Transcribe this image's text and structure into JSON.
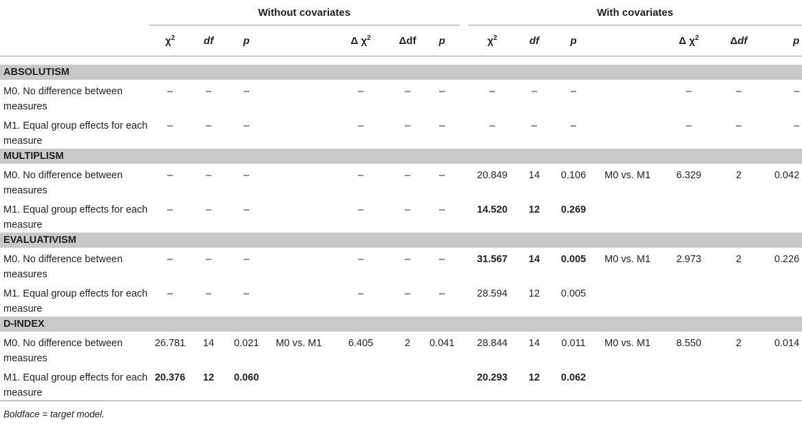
{
  "header": {
    "group_without": "Without covariates",
    "group_with": "With covariates",
    "cols": {
      "chi2": "χ",
      "chi2_sup": "2",
      "df": "df",
      "p": "p",
      "dchi2_prefix": "Δ",
      "dchi2_chi": "χ",
      "dchi2_sup": "2",
      "ddf_prefix": "Δ",
      "ddf": "df"
    }
  },
  "sections": [
    {
      "title": "ABSOLUTISM",
      "rows": [
        {
          "label": "M0. No difference between measures",
          "wo": [
            "–",
            "–",
            "–",
            "",
            "–",
            "–",
            "–"
          ],
          "wi": [
            "–",
            "–",
            "–",
            "",
            "–",
            "–",
            "–"
          ],
          "bold_wo": false,
          "bold_wi": false
        },
        {
          "label": "M1. Equal group effects for each measure",
          "wo": [
            "–",
            "–",
            "–",
            "",
            "–",
            "–",
            "–"
          ],
          "wi": [
            "–",
            "–",
            "–",
            "",
            "–",
            "–",
            "–"
          ],
          "bold_wo": false,
          "bold_wi": false
        }
      ]
    },
    {
      "title": "MULTIPLISM",
      "rows": [
        {
          "label": "M0. No difference between measures",
          "wo": [
            "–",
            "–",
            "–",
            "",
            "–",
            "–",
            "–"
          ],
          "wi": [
            "20.849",
            "14",
            "0.106",
            "M0 vs. M1",
            "6.329",
            "2",
            "0.042"
          ],
          "bold_wo": false,
          "bold_wi": false
        },
        {
          "label": "M1. Equal group effects for each measure",
          "wo": [
            "–",
            "–",
            "–",
            "",
            "–",
            "–",
            "–"
          ],
          "wi": [
            "14.520",
            "12",
            "0.269",
            "",
            "",
            "",
            ""
          ],
          "bold_wo": false,
          "bold_wi": true
        }
      ]
    },
    {
      "title": "EVALUATIVISM",
      "rows": [
        {
          "label": "M0. No difference between measures",
          "wo": [
            "–",
            "–",
            "–",
            "",
            "–",
            "–",
            "–"
          ],
          "wi": [
            "31.567",
            "14",
            "0.005",
            "M0 vs. M1",
            "2.973",
            "2",
            "0.226"
          ],
          "bold_wo": false,
          "bold_wi": true
        },
        {
          "label": "M1. Equal group effects for each measure",
          "wo": [
            "–",
            "–",
            "–",
            "",
            "–",
            "–",
            "–"
          ],
          "wi": [
            "28.594",
            "12",
            "0.005",
            "",
            "",
            "",
            ""
          ],
          "bold_wo": false,
          "bold_wi": false
        }
      ]
    },
    {
      "title": "D-INDEX",
      "rows": [
        {
          "label": "M0. No difference between measures",
          "wo": [
            "26.781",
            "14",
            "0.021",
            "M0 vs. M1",
            "6.405",
            "2",
            "0.041"
          ],
          "wi": [
            "28.844",
            "14",
            "0.011",
            "M0 vs. M1",
            "8.550",
            "2",
            "0.014"
          ],
          "bold_wo": false,
          "bold_wi": false
        },
        {
          "label": "M1. Equal group effects for each measure",
          "wo": [
            "20.376",
            "12",
            "0.060",
            "",
            "",
            "",
            ""
          ],
          "wi": [
            "20.293",
            "12",
            "0.062",
            "",
            "",
            "",
            ""
          ],
          "bold_wo": true,
          "bold_wi": true
        }
      ]
    }
  ],
  "footnote": "Boldface = target model."
}
